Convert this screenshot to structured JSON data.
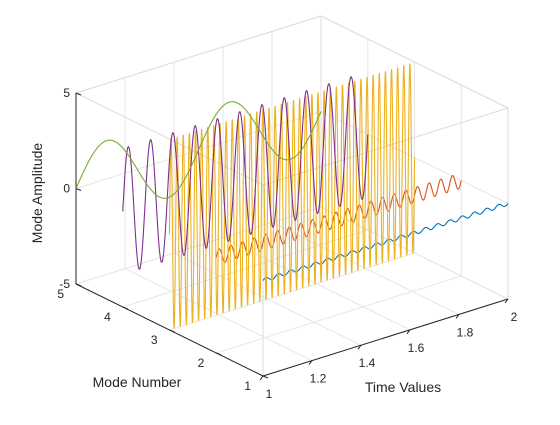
{
  "chart_data": {
    "type": "line",
    "projection": "3d",
    "title": "",
    "xlabel": "Time Values",
    "ylabel": "Mode Number",
    "zlabel": "Mode Amplitude",
    "xlim": [
      1,
      2
    ],
    "ylim": [
      1,
      5
    ],
    "zlim": [
      -5,
      5
    ],
    "xticks": [
      1,
      1.2,
      1.4,
      1.6,
      1.8,
      2
    ],
    "xtick_labels": [
      "1",
      "1.2",
      "1.4",
      "1.6",
      "1.8",
      "2"
    ],
    "yticks": [
      1,
      2,
      3,
      4,
      5
    ],
    "ytick_labels": [
      "1",
      "2",
      "3",
      "4",
      "5"
    ],
    "zticks": [
      -5,
      0,
      5
    ],
    "ztick_labels": [
      "-5",
      "0",
      "5"
    ],
    "grid": true,
    "box": true,
    "legend": "none",
    "series": [
      {
        "mode": 1,
        "color": "#0072BD",
        "amplitude": 0.1,
        "frequency": 20,
        "x_start": 1.0,
        "x_end": 2.0
      },
      {
        "mode": 2,
        "color": "#D95319",
        "amplitude": 0.4,
        "frequency": 21,
        "x_start": 1.0,
        "x_end": 2.0
      },
      {
        "mode": 3,
        "color": "#EDB120",
        "amplitude": 5.0,
        "frequency": 40,
        "x_start": 1.0,
        "x_end": 2.0
      },
      {
        "mode": 4,
        "color": "#7E2F8E",
        "amplitude": 3.3,
        "frequency": 11,
        "x_start": 1.0,
        "x_end": 2.0
      },
      {
        "mode": 5,
        "color": "#77AC30",
        "amplitude": 2.0,
        "frequency": 2,
        "x_start": 1.0,
        "x_end": 2.0
      }
    ]
  }
}
